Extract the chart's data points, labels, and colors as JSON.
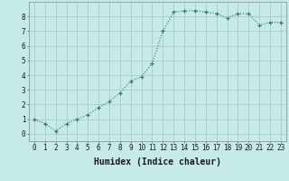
{
  "x": [
    0,
    1,
    2,
    3,
    4,
    5,
    6,
    7,
    8,
    9,
    10,
    11,
    12,
    13,
    14,
    15,
    16,
    17,
    18,
    19,
    20,
    21,
    22,
    23
  ],
  "y": [
    1.0,
    0.7,
    0.2,
    0.7,
    1.0,
    1.3,
    1.8,
    2.2,
    2.8,
    3.6,
    3.9,
    4.8,
    7.0,
    8.3,
    8.4,
    8.4,
    8.3,
    8.2,
    7.9,
    8.2,
    8.2,
    7.4,
    7.6,
    7.6
  ],
  "xlim": [
    -0.5,
    23.5
  ],
  "ylim": [
    -0.5,
    9.0
  ],
  "xlabel": "Humidex (Indice chaleur)",
  "xticks": [
    0,
    1,
    2,
    3,
    4,
    5,
    6,
    7,
    8,
    9,
    10,
    11,
    12,
    13,
    14,
    15,
    16,
    17,
    18,
    19,
    20,
    21,
    22,
    23
  ],
  "yticks": [
    0,
    1,
    2,
    3,
    4,
    5,
    6,
    7,
    8
  ],
  "line_color": "#2d7a6e",
  "marker_color": "#2d7a6e",
  "bg_color": "#c5eae7",
  "grid_color": "#b0c8c8",
  "tick_label_fontsize": 5.5,
  "xlabel_fontsize": 7
}
